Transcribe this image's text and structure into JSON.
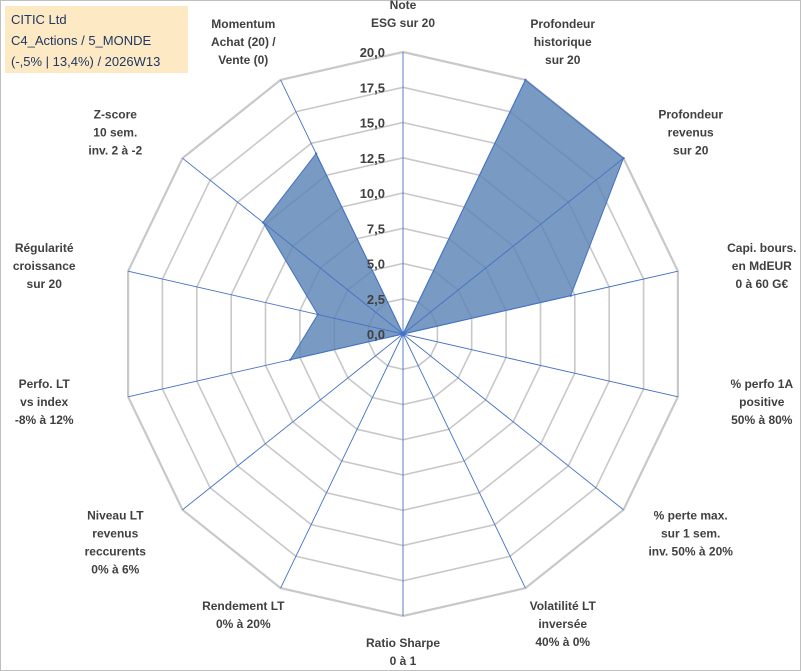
{
  "title_box": {
    "line1": "CITIC Ltd",
    "line2": "C4_Actions / 5_MONDE",
    "line3": "(-,5% | 13,4%) / 2026W13"
  },
  "colors": {
    "fill": "#5b84b5",
    "stroke": "#4472c4",
    "grid": "#c8c8c8",
    "spoke": "#4472c4",
    "title_bg": "#fde9c4"
  },
  "chart_data": {
    "type": "radar",
    "title": "CITIC Ltd",
    "rmin": 0,
    "rmax": 20,
    "step": 2.5,
    "tick_labels": [
      "0,0",
      "2,5",
      "5,0",
      "7,5",
      "10,0",
      "12,5",
      "15,0",
      "17,5",
      "20,0"
    ],
    "axes": [
      [
        "Note",
        "ESG sur 20"
      ],
      [
        "Profondeur",
        "historique",
        "sur 20"
      ],
      [
        "Profondeur",
        "revenus",
        "sur 20"
      ],
      [
        "Capi. bours.",
        "en MdEUR",
        "0 à 60 G€"
      ],
      [
        "% perfo 1A",
        "positive",
        "50% à 80%"
      ],
      [
        "% perte max.",
        "sur 1 sem.",
        "inv. 50% à 20%"
      ],
      [
        "Volatilité LT",
        "inversée",
        "40% à 0%"
      ],
      [
        "Ratio Sharpe",
        "0 à 1"
      ],
      [
        "Rendement LT",
        "0% à 20%"
      ],
      [
        "Niveau LT",
        "revenus",
        "reccurents",
        "0% à 6%"
      ],
      [
        "Perfo. LT",
        "vs index",
        "-8% à 12%"
      ],
      [
        "Régularité",
        "croissance",
        "sur 20"
      ],
      [
        "Z-score",
        "10 sem.",
        "inv. 2 à -2"
      ],
      [
        "Momentum",
        "Achat (20) /",
        "Vente (0)"
      ]
    ],
    "series": [
      {
        "name": "CITIC Ltd",
        "values": [
          0,
          20,
          20,
          12.2,
          0,
          0,
          0,
          0,
          0,
          0,
          8.2,
          6.2,
          12.7,
          14.2
        ]
      }
    ]
  }
}
